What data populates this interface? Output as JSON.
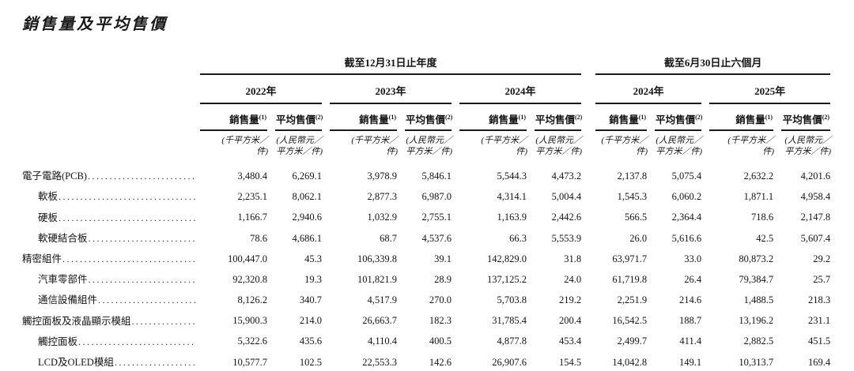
{
  "page": {
    "title": "銷售量及平均售價"
  },
  "table": {
    "groups": [
      {
        "label": "截至12月31日止年度",
        "years": [
          "2022年",
          "2023年",
          "2024年"
        ]
      },
      {
        "label": "截至6月30日止六個月",
        "years": [
          "2024年",
          "2025年"
        ]
      }
    ],
    "measures": {
      "sales": "銷售量",
      "sales_note": "(1)",
      "price": "平均售價",
      "price_note": "(2)"
    },
    "units": {
      "sales_lines": [
        "(千平方米／",
        "件)"
      ],
      "price_lines": [
        "(人民幣元／",
        "平方米／件)"
      ]
    },
    "rows": [
      {
        "label": "電子電路(PCB)",
        "indent": false,
        "values": [
          "3,480.4",
          "6,269.1",
          "3,978.9",
          "5,846.1",
          "5,544.3",
          "4,473.2",
          "2,137.8",
          "5,075.4",
          "2,632.2",
          "4,201.6"
        ]
      },
      {
        "label": "軟板",
        "indent": true,
        "values": [
          "2,235.1",
          "8,062.1",
          "2,877.3",
          "6,987.0",
          "4,314.1",
          "5,004.4",
          "1,545.3",
          "6,060.2",
          "1,871.1",
          "4,958.4"
        ]
      },
      {
        "label": "硬板",
        "indent": true,
        "values": [
          "1,166.7",
          "2,940.6",
          "1,032.9",
          "2,755.1",
          "1,163.9",
          "2,442.6",
          "566.5",
          "2,364.4",
          "718.6",
          "2,147.8"
        ]
      },
      {
        "label": "軟硬結合板",
        "indent": true,
        "values": [
          "78.6",
          "4,686.1",
          "68.7",
          "4,537.6",
          "66.3",
          "5,553.9",
          "26.0",
          "5,616.6",
          "42.5",
          "5,607.4"
        ]
      },
      {
        "label": "精密組件",
        "indent": false,
        "values": [
          "100,447.0",
          "45.3",
          "106,339.8",
          "39.1",
          "142,829.0",
          "31.8",
          "63,971.7",
          "33.0",
          "80,873.2",
          "29.2"
        ]
      },
      {
        "label": "汽車零部件",
        "indent": true,
        "values": [
          "92,320.8",
          "19.3",
          "101,821.9",
          "28.9",
          "137,125.2",
          "24.0",
          "61,719.8",
          "26.4",
          "79,384.7",
          "25.7"
        ]
      },
      {
        "label": "通信設備組件",
        "indent": true,
        "values": [
          "8,126.2",
          "340.7",
          "4,517.9",
          "270.0",
          "5,703.8",
          "219.2",
          "2,251.9",
          "214.6",
          "1,488.5",
          "218.3"
        ]
      },
      {
        "label": "觸控面板及液晶顯示模組",
        "indent": false,
        "values": [
          "15,900.3",
          "214.0",
          "26,663.7",
          "182.3",
          "31,785.4",
          "200.4",
          "16,542.5",
          "188.7",
          "13,196.2",
          "231.1"
        ]
      },
      {
        "label": "觸控面板",
        "indent": true,
        "values": [
          "5,322.6",
          "435.6",
          "4,110.4",
          "400.5",
          "4,877.8",
          "453.4",
          "2,499.7",
          "411.4",
          "2,882.5",
          "451.5"
        ]
      },
      {
        "label": "LCD及OLED模組",
        "indent": true,
        "values": [
          "10,577.7",
          "102.5",
          "22,553.3",
          "142.6",
          "26,907.6",
          "154.5",
          "14,042.8",
          "149.1",
          "10,313.7",
          "169.4"
        ]
      }
    ]
  }
}
